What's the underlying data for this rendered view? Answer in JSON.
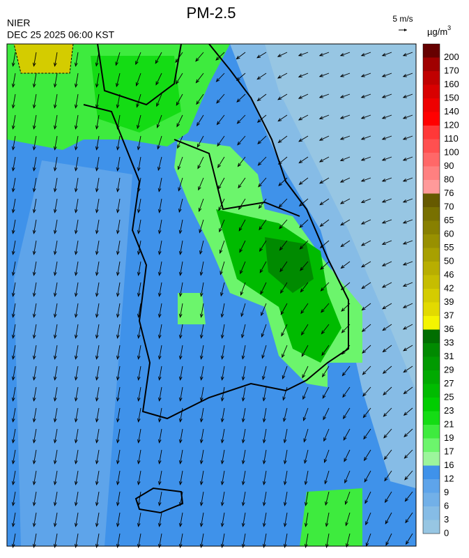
{
  "header": {
    "title": "PM-2.5",
    "agency": "NIER",
    "datetime": "DEC 25 2025 06:00 KST",
    "wind_scale": "5 m/s"
  },
  "legend": {
    "unit": "µg/m",
    "unit_sup": "3",
    "levels": [
      0,
      3,
      6,
      9,
      12,
      16,
      17,
      19,
      21,
      23,
      25,
      27,
      29,
      31,
      33,
      36,
      37,
      39,
      42,
      46,
      50,
      55,
      60,
      65,
      70,
      76,
      80,
      90,
      100,
      110,
      120,
      140,
      150,
      160,
      170,
      200
    ],
    "colors": [
      "#97c6e3",
      "#86bce6",
      "#72b0e8",
      "#5ea4ea",
      "#3f92ea",
      "#9cf59c",
      "#6cf56c",
      "#3eeb3e",
      "#14dc14",
      "#00cd00",
      "#00bb00",
      "#00aa00",
      "#009a00",
      "#008a00",
      "#006e00",
      "#f4f400",
      "#e2da00",
      "#d4cc00",
      "#c6bd00",
      "#b8ae00",
      "#a8a000",
      "#989000",
      "#888000",
      "#787000",
      "#665a00",
      "#ff9a9a",
      "#ff8080",
      "#ff6868",
      "#ff5050",
      "#ff3838",
      "#ff0000",
      "#ee0000",
      "#d80000",
      "#c00000",
      "#a00000",
      "#660000"
    ]
  }
}
